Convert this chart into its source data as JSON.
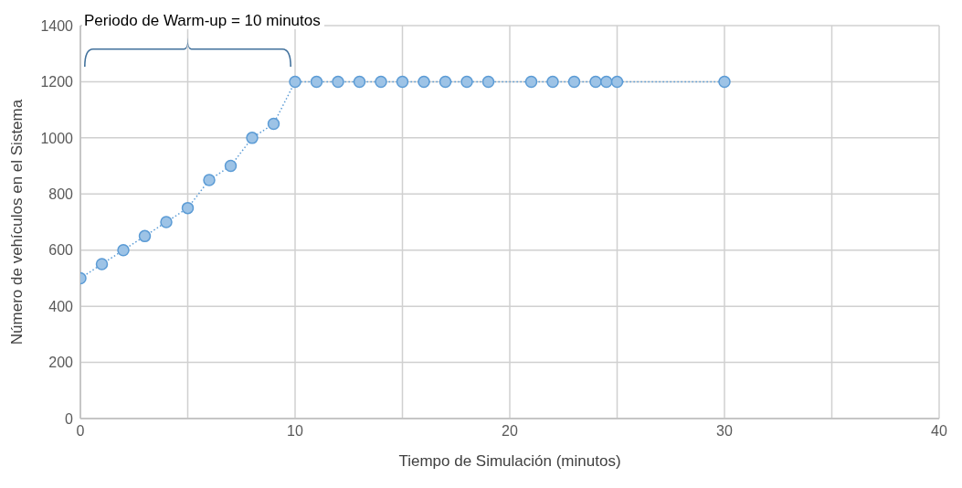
{
  "chart_data": {
    "type": "line",
    "xlabel": "Tiempo de Simulación (minutos)",
    "ylabel": "Número de vehículos en el Sistema",
    "x": [
      0,
      1,
      2,
      3,
      4,
      5,
      6,
      7,
      8,
      9,
      10,
      11,
      12,
      13,
      14,
      15,
      16,
      17,
      18,
      19,
      21,
      22,
      23,
      24,
      24.5,
      25,
      30
    ],
    "series": [
      {
        "color": "#5b9bd5",
        "values": [
          500,
          550,
          600,
          650,
          700,
          750,
          850,
          900,
          1000,
          1050,
          1200,
          1200,
          1200,
          1200,
          1200,
          1200,
          1200,
          1200,
          1200,
          1200,
          1200,
          1200,
          1200,
          1200,
          1200,
          1200,
          1200
        ]
      }
    ],
    "xlim": [
      0,
      40
    ],
    "xticks": [
      0,
      {
        "value": 5,
        "label": null
      },
      10,
      {
        "value": 15,
        "label": null
      },
      20,
      {
        "value": 25,
        "label": null
      },
      30,
      {
        "value": 35,
        "label": null
      },
      40
    ],
    "ylim": [
      0,
      1400
    ],
    "yticks": [
      0,
      200,
      400,
      600,
      800,
      1000,
      1200,
      1400
    ],
    "grid": true,
    "marker": "circle",
    "line_style": "dotted",
    "annotations": [
      "Periodo de Warm-up = 10 minutos"
    ]
  }
}
